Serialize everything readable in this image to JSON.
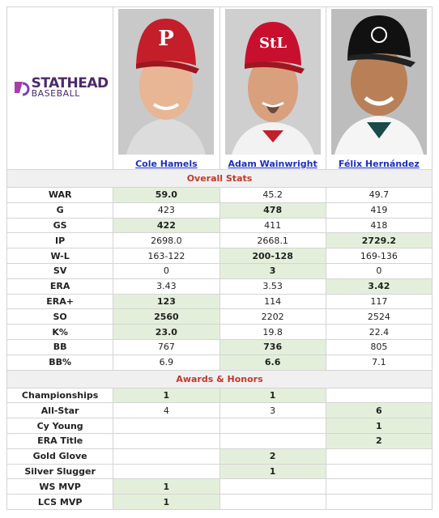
{
  "logo": {
    "top": "STATHEAD",
    "bottom": "BASEBALL"
  },
  "players": [
    "Cole Hamels",
    "Adam Wainwright",
    "Félix Hernández"
  ],
  "sections": [
    {
      "title": "Overall Stats",
      "rows": [
        {
          "label": "WAR",
          "values": [
            "59.0",
            "45.2",
            "49.7"
          ],
          "highlight": [
            0
          ]
        },
        {
          "label": "G",
          "values": [
            "423",
            "478",
            "419"
          ],
          "highlight": [
            1
          ]
        },
        {
          "label": "GS",
          "values": [
            "422",
            "411",
            "418"
          ],
          "highlight": [
            0
          ]
        },
        {
          "label": "IP",
          "values": [
            "2698.0",
            "2668.1",
            "2729.2"
          ],
          "highlight": [
            2
          ]
        },
        {
          "label": "W-L",
          "values": [
            "163-122",
            "200-128",
            "169-136"
          ],
          "highlight": [
            1
          ]
        },
        {
          "label": "SV",
          "values": [
            "0",
            "3",
            "0"
          ],
          "highlight": [
            1
          ]
        },
        {
          "label": "ERA",
          "values": [
            "3.43",
            "3.53",
            "3.42"
          ],
          "highlight": [
            2
          ]
        },
        {
          "label": "ERA+",
          "values": [
            "123",
            "114",
            "117"
          ],
          "highlight": [
            0
          ]
        },
        {
          "label": "SO",
          "values": [
            "2560",
            "2202",
            "2524"
          ],
          "highlight": [
            0
          ]
        },
        {
          "label": "K%",
          "values": [
            "23.0",
            "19.8",
            "22.4"
          ],
          "highlight": [
            0
          ]
        },
        {
          "label": "BB",
          "values": [
            "767",
            "736",
            "805"
          ],
          "highlight": [
            1
          ]
        },
        {
          "label": "BB%",
          "values": [
            "6.9",
            "6.6",
            "7.1"
          ],
          "highlight": [
            1
          ]
        }
      ]
    },
    {
      "title": "Awards & Honors",
      "rows": [
        {
          "label": "Championships",
          "values": [
            "1",
            "1",
            null
          ],
          "highlight": [
            0,
            1
          ]
        },
        {
          "label": "All-Star",
          "values": [
            "4",
            "3",
            "6"
          ],
          "highlight": [
            2
          ]
        },
        {
          "label": "Cy Young",
          "values": [
            null,
            null,
            "1"
          ],
          "highlight": [
            2
          ]
        },
        {
          "label": "ERA Title",
          "values": [
            null,
            null,
            "2"
          ],
          "highlight": [
            2
          ]
        },
        {
          "label": "Gold Glove",
          "values": [
            null,
            "2",
            null
          ],
          "highlight": [
            1
          ]
        },
        {
          "label": "Silver Slugger",
          "values": [
            null,
            "1",
            null
          ],
          "highlight": [
            1
          ]
        },
        {
          "label": "WS MVP",
          "values": [
            "1",
            null,
            null
          ],
          "highlight": [
            0
          ]
        },
        {
          "label": "LCS MVP",
          "values": [
            "1",
            null,
            null
          ],
          "highlight": [
            0
          ]
        }
      ]
    }
  ]
}
